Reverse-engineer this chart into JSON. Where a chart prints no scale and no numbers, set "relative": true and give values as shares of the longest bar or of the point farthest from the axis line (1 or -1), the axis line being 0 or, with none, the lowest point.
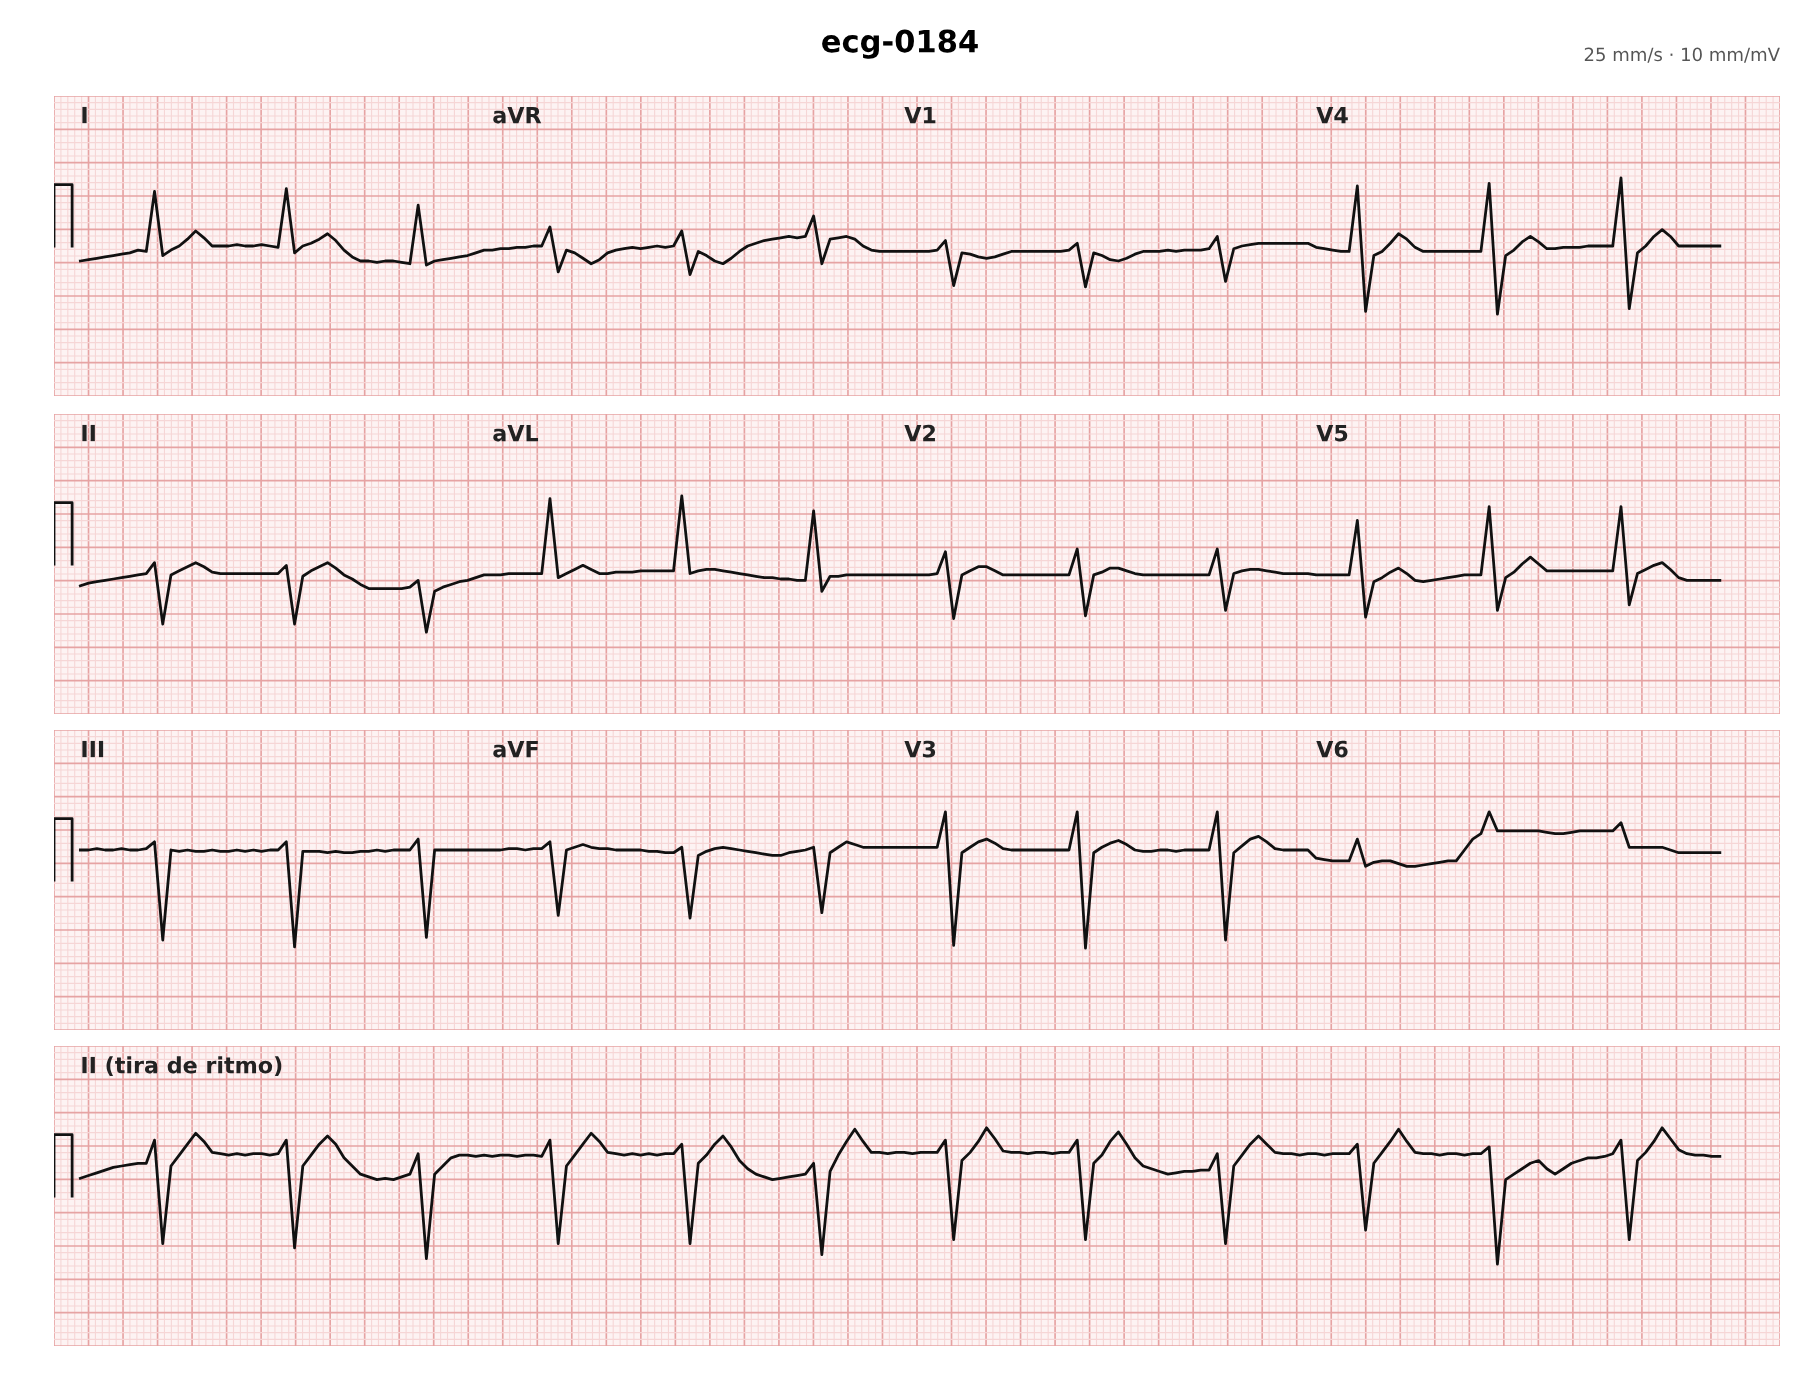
{
  "chart_data": [
    {
      "type": "line",
      "title": "ecg-0184",
      "subtitle": "25 mm/s · 10 mm/mV",
      "annotations": [
        "I",
        "aVR",
        "V1",
        "V4"
      ],
      "relative": true,
      "grid": true,
      "marker": "none",
      "line_style": "solid",
      "categories": [
        null,
        null,
        null,
        null,
        null,
        null,
        null,
        null,
        null,
        null,
        null,
        null,
        null,
        null,
        null,
        null,
        null,
        null,
        null,
        null,
        null,
        null,
        null,
        null,
        null,
        null,
        null,
        null,
        null,
        null,
        null,
        null,
        null,
        null,
        null,
        null,
        null,
        null,
        null,
        null,
        null,
        null,
        null,
        null,
        null,
        null,
        null,
        null,
        null,
        null,
        null,
        null,
        null,
        null,
        null,
        null,
        null,
        null,
        null,
        null,
        null,
        null,
        null,
        null,
        null,
        null,
        null,
        null,
        null,
        null,
        null,
        null,
        null,
        null,
        null,
        null,
        null,
        null,
        null,
        null,
        null,
        null,
        null,
        null,
        null,
        null,
        null,
        null,
        null,
        null,
        null,
        null,
        null,
        null,
        null,
        null,
        null,
        null,
        null,
        null,
        null,
        null,
        null,
        null,
        null,
        null,
        null,
        null,
        null,
        null,
        null,
        null,
        null,
        null,
        null,
        null,
        null,
        null,
        null,
        null,
        null,
        null,
        null,
        null,
        null,
        null,
        null,
        null,
        null,
        null,
        null,
        null,
        null,
        null,
        null,
        null,
        null,
        null,
        null,
        null,
        null,
        null,
        null,
        null,
        null,
        null,
        null,
        null,
        null,
        null,
        null,
        null,
        null,
        null,
        null,
        null,
        null,
        null,
        null,
        null,
        null,
        null,
        null,
        null,
        null,
        null,
        null,
        null,
        null,
        null,
        null,
        null,
        null,
        null,
        null,
        null,
        null,
        null,
        null,
        null,
        null,
        null,
        null,
        null,
        null,
        null,
        null,
        null,
        null,
        null,
        null,
        null,
        null,
        null,
        null,
        null,
        null,
        null,
        null,
        null
      ],
      "series": [
        {
          "color": "#111111",
          "values": [
            0.39,
            0.4,
            0.41,
            0.42,
            0.43,
            0.44,
            0.45,
            0.47,
            0.46,
            0.9,
            0.43,
            0.47,
            0.5,
            0.55,
            0.61,
            0.56,
            0.5,
            0.5,
            0.5,
            0.51,
            0.5,
            0.5,
            0.51,
            0.5,
            0.49,
            0.92,
            0.45,
            0.5,
            0.52,
            0.55,
            0.59,
            0.54,
            0.47,
            0.42,
            0.39,
            0.39,
            0.38,
            0.39,
            0.39,
            0.38,
            0.37,
            0.8,
            0.36,
            0.39,
            0.4,
            0.41,
            0.42,
            0.43,
            0.45,
            0.47,
            0.47,
            0.48,
            0.48,
            0.49,
            0.49,
            0.5,
            0.5,
            0.64,
            0.31,
            0.47,
            0.45,
            0.41,
            0.37,
            0.4,
            0.45,
            0.47,
            0.48,
            0.49,
            0.48,
            0.49,
            0.5,
            0.49,
            0.5,
            0.61,
            0.29,
            0.46,
            0.43,
            0.39,
            0.37,
            0.41,
            0.46,
            0.5,
            0.52,
            0.54,
            0.55,
            0.56,
            0.57,
            0.56,
            0.57,
            0.72,
            0.37,
            0.55,
            0.56,
            0.57,
            0.55,
            0.5,
            0.47,
            0.46,
            0.46,
            0.46,
            0.46,
            0.46,
            0.46,
            0.46,
            0.47,
            0.54,
            0.21,
            0.45,
            0.44,
            0.42,
            0.41,
            0.42,
            0.44,
            0.46,
            0.46,
            0.46,
            0.46,
            0.46,
            0.46,
            0.46,
            0.47,
            0.52,
            0.2,
            0.45,
            0.43,
            0.4,
            0.39,
            0.41,
            0.44,
            0.46,
            0.46,
            0.46,
            0.47,
            0.46,
            0.47,
            0.47,
            0.47,
            0.48,
            0.57,
            0.24,
            0.48,
            0.5,
            0.51,
            0.52,
            0.52,
            0.52,
            0.52,
            0.52,
            0.52,
            0.52,
            0.49,
            0.48,
            0.47,
            0.46,
            0.46,
            0.94,
            0.02,
            0.43,
            0.46,
            0.52,
            0.59,
            0.55,
            0.49,
            0.46,
            0.46,
            0.46,
            0.46,
            0.46,
            0.46,
            0.46,
            0.46,
            0.96,
            0.0,
            0.43,
            0.47,
            0.53,
            0.57,
            0.53,
            0.48,
            0.48,
            0.49,
            0.49,
            0.49,
            0.5,
            0.5,
            0.5,
            0.5,
            1.0,
            0.04,
            0.45,
            0.5,
            0.57,
            0.62,
            0.57,
            0.5,
            0.5,
            0.5,
            0.5,
            0.5,
            0.5
          ]
        }
      ]
    },
    {
      "type": "line",
      "annotations": [
        "II",
        "aVL",
        "V2",
        "V5"
      ],
      "relative": true,
      "grid": true,
      "marker": "none",
      "line_style": "solid",
      "categories": [
        null,
        null,
        null,
        null,
        null,
        null,
        null,
        null,
        null,
        null,
        null,
        null,
        null,
        null,
        null,
        null,
        null,
        null,
        null,
        null,
        null,
        null,
        null,
        null,
        null,
        null,
        null,
        null,
        null,
        null,
        null,
        null,
        null,
        null,
        null,
        null,
        null,
        null,
        null,
        null,
        null,
        null,
        null,
        null,
        null,
        null,
        null,
        null,
        null,
        null,
        null,
        null,
        null,
        null,
        null,
        null,
        null,
        null,
        null,
        null,
        null,
        null,
        null,
        null,
        null,
        null,
        null,
        null,
        null,
        null,
        null,
        null,
        null,
        null,
        null,
        null,
        null,
        null,
        null,
        null,
        null,
        null,
        null,
        null,
        null,
        null,
        null,
        null,
        null,
        null,
        null,
        null,
        null,
        null,
        null,
        null,
        null,
        null,
        null,
        null,
        null,
        null,
        null,
        null,
        null,
        null,
        null,
        null,
        null,
        null,
        null,
        null,
        null,
        null,
        null,
        null,
        null,
        null,
        null,
        null,
        null,
        null,
        null,
        null,
        null,
        null,
        null,
        null,
        null,
        null,
        null,
        null,
        null,
        null,
        null,
        null,
        null,
        null,
        null,
        null,
        null,
        null,
        null,
        null,
        null,
        null,
        null,
        null,
        null,
        null,
        null,
        null,
        null,
        null,
        null,
        null,
        null,
        null,
        null,
        null,
        null,
        null,
        null,
        null,
        null,
        null,
        null,
        null,
        null,
        null,
        null,
        null,
        null,
        null,
        null,
        null,
        null,
        null,
        null,
        null,
        null,
        null,
        null,
        null,
        null,
        null,
        null,
        null,
        null,
        null,
        null,
        null,
        null,
        null,
        null,
        null,
        null,
        null,
        null,
        null
      ],
      "series": [
        {
          "color": "#111111",
          "values": [
            0.34,
            0.36,
            0.37,
            0.38,
            0.39,
            0.4,
            0.41,
            0.42,
            0.43,
            0.51,
            0.06,
            0.42,
            0.45,
            0.48,
            0.51,
            0.48,
            0.44,
            0.43,
            0.43,
            0.43,
            0.43,
            0.43,
            0.43,
            0.43,
            0.43,
            0.49,
            0.06,
            0.41,
            0.45,
            0.48,
            0.51,
            0.47,
            0.42,
            0.39,
            0.35,
            0.32,
            0.32,
            0.32,
            0.32,
            0.32,
            0.33,
            0.38,
            0.0,
            0.3,
            0.33,
            0.35,
            0.37,
            0.38,
            0.4,
            0.42,
            0.42,
            0.42,
            0.43,
            0.43,
            0.43,
            0.43,
            0.43,
            0.98,
            0.4,
            0.43,
            0.46,
            0.49,
            0.46,
            0.43,
            0.43,
            0.44,
            0.44,
            0.44,
            0.45,
            0.45,
            0.45,
            0.45,
            0.45,
            1.0,
            0.43,
            0.45,
            0.46,
            0.46,
            0.45,
            0.44,
            0.43,
            0.42,
            0.41,
            0.4,
            0.4,
            0.39,
            0.39,
            0.38,
            0.38,
            0.89,
            0.3,
            0.41,
            0.41,
            0.42,
            0.42,
            0.42,
            0.42,
            0.42,
            0.42,
            0.42,
            0.42,
            0.42,
            0.42,
            0.42,
            0.43,
            0.59,
            0.1,
            0.42,
            0.45,
            0.48,
            0.48,
            0.45,
            0.42,
            0.42,
            0.42,
            0.42,
            0.42,
            0.42,
            0.42,
            0.42,
            0.42,
            0.61,
            0.12,
            0.42,
            0.44,
            0.47,
            0.47,
            0.45,
            0.43,
            0.42,
            0.42,
            0.42,
            0.42,
            0.42,
            0.42,
            0.42,
            0.42,
            0.42,
            0.61,
            0.16,
            0.43,
            0.45,
            0.46,
            0.46,
            0.45,
            0.44,
            0.43,
            0.43,
            0.43,
            0.43,
            0.42,
            0.42,
            0.42,
            0.42,
            0.42,
            0.82,
            0.11,
            0.37,
            0.4,
            0.44,
            0.47,
            0.43,
            0.38,
            0.37,
            0.38,
            0.39,
            0.4,
            0.41,
            0.42,
            0.42,
            0.42,
            0.92,
            0.16,
            0.4,
            0.44,
            0.5,
            0.55,
            0.5,
            0.45,
            0.45,
            0.45,
            0.45,
            0.45,
            0.45,
            0.45,
            0.45,
            0.45,
            0.92,
            0.2,
            0.43,
            0.46,
            0.49,
            0.51,
            0.46,
            0.4,
            0.38,
            0.38,
            0.38,
            0.38,
            0.38
          ]
        }
      ]
    },
    {
      "type": "line",
      "annotations": [
        "III",
        "aVF",
        "V3",
        "V6"
      ],
      "relative": true,
      "grid": true,
      "marker": "none",
      "line_style": "solid",
      "categories": [
        null,
        null,
        null,
        null,
        null,
        null,
        null,
        null,
        null,
        null,
        null,
        null,
        null,
        null,
        null,
        null,
        null,
        null,
        null,
        null,
        null,
        null,
        null,
        null,
        null,
        null,
        null,
        null,
        null,
        null,
        null,
        null,
        null,
        null,
        null,
        null,
        null,
        null,
        null,
        null,
        null,
        null,
        null,
        null,
        null,
        null,
        null,
        null,
        null,
        null,
        null,
        null,
        null,
        null,
        null,
        null,
        null,
        null,
        null,
        null,
        null,
        null,
        null,
        null,
        null,
        null,
        null,
        null,
        null,
        null,
        null,
        null,
        null,
        null,
        null,
        null,
        null,
        null,
        null,
        null,
        null,
        null,
        null,
        null,
        null,
        null,
        null,
        null,
        null,
        null,
        null,
        null,
        null,
        null,
        null,
        null,
        null,
        null,
        null,
        null,
        null,
        null,
        null,
        null,
        null,
        null,
        null,
        null,
        null,
        null,
        null,
        null,
        null,
        null,
        null,
        null,
        null,
        null,
        null,
        null,
        null,
        null,
        null,
        null,
        null,
        null,
        null,
        null,
        null,
        null,
        null,
        null,
        null,
        null,
        null,
        null,
        null,
        null,
        null,
        null,
        null,
        null,
        null,
        null,
        null,
        null,
        null,
        null,
        null,
        null,
        null,
        null,
        null,
        null,
        null,
        null,
        null,
        null,
        null,
        null,
        null,
        null,
        null,
        null,
        null,
        null,
        null,
        null,
        null,
        null,
        null,
        null,
        null,
        null,
        null,
        null,
        null,
        null,
        null,
        null,
        null,
        null,
        null,
        null,
        null,
        null,
        null,
        null,
        null,
        null,
        null,
        null,
        null,
        null,
        null,
        null,
        null,
        null,
        null,
        null
      ],
      "series": [
        {
          "color": "#111111",
          "values": [
            0.72,
            0.72,
            0.73,
            0.72,
            0.72,
            0.73,
            0.72,
            0.72,
            0.73,
            0.78,
            0.06,
            0.72,
            0.71,
            0.72,
            0.71,
            0.71,
            0.72,
            0.71,
            0.71,
            0.72,
            0.71,
            0.72,
            0.71,
            0.72,
            0.72,
            0.78,
            0.01,
            0.71,
            0.71,
            0.71,
            0.7,
            0.71,
            0.7,
            0.7,
            0.71,
            0.71,
            0.72,
            0.71,
            0.72,
            0.72,
            0.72,
            0.8,
            0.08,
            0.72,
            0.72,
            0.72,
            0.72,
            0.72,
            0.72,
            0.72,
            0.72,
            0.72,
            0.73,
            0.73,
            0.72,
            0.73,
            0.73,
            0.78,
            0.24,
            0.72,
            0.74,
            0.76,
            0.74,
            0.73,
            0.73,
            0.72,
            0.72,
            0.72,
            0.72,
            0.71,
            0.71,
            0.7,
            0.7,
            0.74,
            0.22,
            0.68,
            0.71,
            0.73,
            0.74,
            0.73,
            0.72,
            0.71,
            0.7,
            0.69,
            0.68,
            0.68,
            0.7,
            0.71,
            0.72,
            0.74,
            0.26,
            0.7,
            0.74,
            0.78,
            0.76,
            0.74,
            0.74,
            0.74,
            0.74,
            0.74,
            0.74,
            0.74,
            0.74,
            0.74,
            0.74,
            1.0,
            0.02,
            0.7,
            0.74,
            0.78,
            0.8,
            0.77,
            0.73,
            0.72,
            0.72,
            0.72,
            0.72,
            0.72,
            0.72,
            0.72,
            0.72,
            1.0,
            0.0,
            0.7,
            0.74,
            0.77,
            0.79,
            0.76,
            0.72,
            0.71,
            0.71,
            0.72,
            0.72,
            0.71,
            0.72,
            0.72,
            0.72,
            0.72,
            1.0,
            0.06,
            0.7,
            0.75,
            0.8,
            0.82,
            0.78,
            0.73,
            0.72,
            0.72,
            0.72,
            0.72,
            0.66,
            0.65,
            0.64,
            0.64,
            0.64,
            0.8,
            0.6,
            0.63,
            0.64,
            0.64,
            0.62,
            0.6,
            0.6,
            0.61,
            0.62,
            0.63,
            0.64,
            0.64,
            0.72,
            0.8,
            0.84,
            1.0,
            0.86,
            0.86,
            0.86,
            0.86,
            0.86,
            0.86,
            0.85,
            0.84,
            0.84,
            0.85,
            0.86,
            0.86,
            0.86,
            0.86,
            0.86,
            0.92,
            0.74,
            0.74,
            0.74,
            0.74,
            0.74,
            0.72,
            0.7,
            0.7,
            0.7,
            0.7,
            0.7,
            0.7
          ]
        }
      ]
    },
    {
      "type": "line",
      "annotations": [
        "II (tira de ritmo)"
      ],
      "relative": true,
      "grid": true,
      "marker": "none",
      "line_style": "solid",
      "categories": [
        null,
        null,
        null,
        null,
        null,
        null,
        null,
        null,
        null,
        null,
        null,
        null,
        null,
        null,
        null,
        null,
        null,
        null,
        null,
        null,
        null,
        null,
        null,
        null,
        null,
        null,
        null,
        null,
        null,
        null,
        null,
        null,
        null,
        null,
        null,
        null,
        null,
        null,
        null,
        null,
        null,
        null,
        null,
        null,
        null,
        null,
        null,
        null,
        null,
        null,
        null,
        null,
        null,
        null,
        null,
        null,
        null,
        null,
        null,
        null,
        null,
        null,
        null,
        null,
        null,
        null,
        null,
        null,
        null,
        null,
        null,
        null,
        null,
        null,
        null,
        null,
        null,
        null,
        null,
        null,
        null,
        null,
        null,
        null,
        null,
        null,
        null,
        null,
        null,
        null,
        null,
        null,
        null,
        null,
        null,
        null,
        null,
        null,
        null,
        null,
        null,
        null,
        null,
        null,
        null,
        null,
        null,
        null,
        null,
        null,
        null,
        null,
        null,
        null,
        null,
        null,
        null,
        null,
        null,
        null,
        null,
        null,
        null,
        null,
        null,
        null,
        null,
        null,
        null,
        null,
        null,
        null,
        null,
        null,
        null,
        null,
        null,
        null,
        null,
        null,
        null,
        null,
        null,
        null,
        null,
        null,
        null,
        null,
        null,
        null,
        null,
        null,
        null,
        null,
        null,
        null,
        null,
        null,
        null,
        null,
        null,
        null,
        null,
        null,
        null,
        null,
        null,
        null,
        null,
        null,
        null,
        null,
        null,
        null,
        null,
        null,
        null,
        null,
        null,
        null,
        null,
        null,
        null,
        null,
        null,
        null,
        null,
        null,
        null,
        null,
        null,
        null,
        null,
        null,
        null,
        null,
        null,
        null,
        null,
        null
      ],
      "series": [
        {
          "color": "#111111",
          "values": [
            0.63,
            0.65,
            0.67,
            0.69,
            0.71,
            0.72,
            0.73,
            0.74,
            0.74,
            0.91,
            0.15,
            0.72,
            0.8,
            0.88,
            0.96,
            0.9,
            0.82,
            0.81,
            0.8,
            0.81,
            0.8,
            0.81,
            0.81,
            0.8,
            0.81,
            0.91,
            0.12,
            0.72,
            0.8,
            0.88,
            0.94,
            0.88,
            0.78,
            0.72,
            0.66,
            0.64,
            0.62,
            0.63,
            0.62,
            0.64,
            0.66,
            0.81,
            0.04,
            0.66,
            0.72,
            0.78,
            0.8,
            0.8,
            0.79,
            0.8,
            0.79,
            0.8,
            0.8,
            0.79,
            0.8,
            0.8,
            0.79,
            0.91,
            0.15,
            0.72,
            0.8,
            0.88,
            0.96,
            0.9,
            0.82,
            0.81,
            0.8,
            0.81,
            0.8,
            0.81,
            0.8,
            0.81,
            0.81,
            0.88,
            0.15,
            0.74,
            0.8,
            0.88,
            0.94,
            0.86,
            0.76,
            0.7,
            0.66,
            0.64,
            0.62,
            0.63,
            0.64,
            0.65,
            0.66,
            0.74,
            0.07,
            0.68,
            0.8,
            0.9,
            0.99,
            0.9,
            0.82,
            0.82,
            0.81,
            0.82,
            0.82,
            0.81,
            0.82,
            0.82,
            0.82,
            0.91,
            0.18,
            0.76,
            0.82,
            0.9,
            1.0,
            0.92,
            0.83,
            0.82,
            0.82,
            0.81,
            0.82,
            0.82,
            0.81,
            0.82,
            0.82,
            0.91,
            0.18,
            0.74,
            0.8,
            0.9,
            0.97,
            0.88,
            0.78,
            0.72,
            0.7,
            0.68,
            0.66,
            0.67,
            0.68,
            0.68,
            0.69,
            0.69,
            0.81,
            0.15,
            0.72,
            0.8,
            0.88,
            0.94,
            0.88,
            0.82,
            0.81,
            0.81,
            0.8,
            0.81,
            0.81,
            0.8,
            0.81,
            0.81,
            0.81,
            0.88,
            0.25,
            0.74,
            0.82,
            0.9,
            0.99,
            0.9,
            0.82,
            0.81,
            0.81,
            0.8,
            0.81,
            0.81,
            0.8,
            0.81,
            0.81,
            0.86,
            0.0,
            0.62,
            0.66,
            0.7,
            0.74,
            0.76,
            0.7,
            0.66,
            0.7,
            0.74,
            0.76,
            0.78,
            0.78,
            0.79,
            0.81,
            0.91,
            0.18,
            0.76,
            0.82,
            0.9,
            1.0,
            0.92,
            0.84,
            0.81,
            0.8,
            0.8,
            0.79,
            0.79
          ]
        }
      ]
    }
  ]
}
